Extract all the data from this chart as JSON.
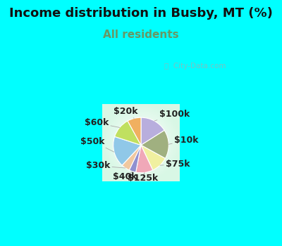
{
  "title": "Income distribution in Busby, MT (%)",
  "subtitle": "All residents",
  "bg_color": "#00FFFF",
  "chart_bg_color": "#f0faf0",
  "watermark": "City-Data.com",
  "slices": [
    {
      "label": "$100k",
      "value": 16,
      "color": "#b8aedd"
    },
    {
      "label": "$10k",
      "value": 17,
      "color": "#a0b080"
    },
    {
      "label": "$75k",
      "value": 10,
      "color": "#f0f0a0"
    },
    {
      "label": "$125k",
      "value": 10,
      "color": "#f0a8b8"
    },
    {
      "label": "$40k",
      "value": 4,
      "color": "#9090d0"
    },
    {
      "label": "$30k",
      "value": 5,
      "color": "#f0c8a0"
    },
    {
      "label": "$50k",
      "value": 18,
      "color": "#90c8e8"
    },
    {
      "label": "$60k",
      "value": 12,
      "color": "#c0e060"
    },
    {
      "label": "$20k",
      "value": 8,
      "color": "#f0b060"
    }
  ],
  "startangle": 90,
  "title_fontsize": 13,
  "subtitle_fontsize": 11,
  "label_fontsize": 9,
  "label_color": "#222222"
}
